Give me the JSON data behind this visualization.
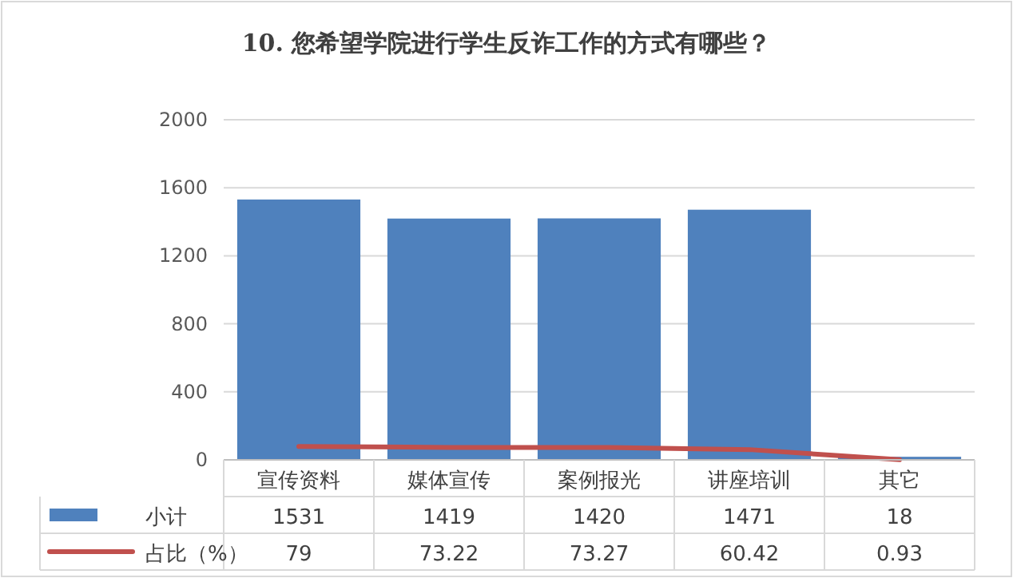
{
  "chart_data": {
    "type": "bar",
    "title": "10. 您希望学院进行学生反诈工作的方式有哪些？",
    "categories": [
      "宣传资料",
      "媒体宣传",
      "案例报光",
      "讲座培训",
      "其它"
    ],
    "series": [
      {
        "name": "小计",
        "color": "#4f81bd",
        "values": [
          1531,
          1419,
          1420,
          1471,
          18
        ]
      },
      {
        "name": "占比（%）",
        "type": "line",
        "color": "#c0504d",
        "values": [
          79,
          73.22,
          73.27,
          60.42,
          0.93
        ]
      }
    ],
    "ylim": [
      0,
      2000
    ],
    "yticks": [
      0,
      400,
      800,
      1200,
      1600,
      2000
    ],
    "grid": "y",
    "legend": "bottom",
    "data_labels": true,
    "marker": "none"
  }
}
